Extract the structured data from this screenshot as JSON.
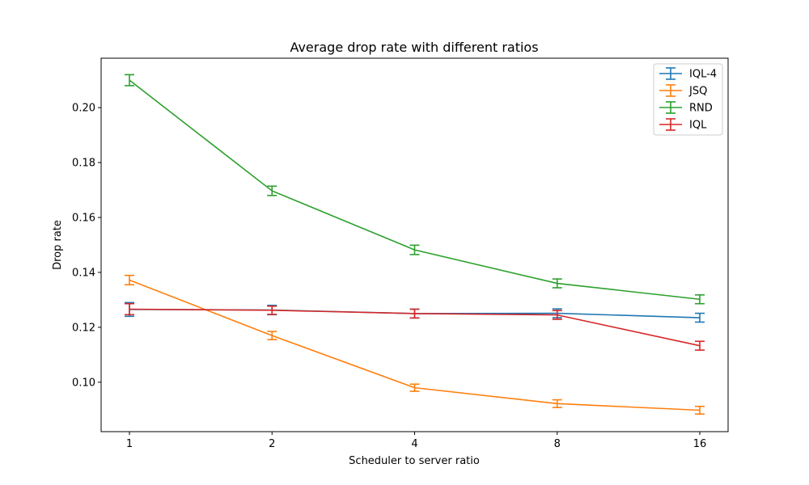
{
  "chart_data": {
    "type": "line",
    "title": "Average drop rate with different ratios",
    "xlabel": "Scheduler to server ratio",
    "ylabel": "Drop rate",
    "categories": [
      "1",
      "2",
      "4",
      "8",
      "16"
    ],
    "ylim": [
      0.082,
      0.218
    ],
    "yticks": [
      0.1,
      0.12,
      0.14,
      0.16,
      0.18,
      0.2
    ],
    "ytick_labels": [
      "0.10",
      "0.12",
      "0.14",
      "0.16",
      "0.18",
      "0.20"
    ],
    "grid": false,
    "legend_position": "top-right",
    "series": [
      {
        "name": "IQL-4",
        "color": "#1f77b4",
        "values": [
          0.1265,
          0.1263,
          0.125,
          0.1251,
          0.1235
        ],
        "errors": [
          0.0025,
          0.0017,
          0.0016,
          0.0016,
          0.0016
        ]
      },
      {
        "name": "JSQ",
        "color": "#ff7f0e",
        "values": [
          0.1372,
          0.117,
          0.098,
          0.0922,
          0.0898
        ],
        "errors": [
          0.0017,
          0.0015,
          0.0013,
          0.0014,
          0.0014
        ]
      },
      {
        "name": "RND",
        "color": "#2ca02c",
        "values": [
          0.21,
          0.1697,
          0.1482,
          0.136,
          0.1302
        ],
        "errors": [
          0.002,
          0.0017,
          0.0017,
          0.0016,
          0.0016
        ]
      },
      {
        "name": "IQL",
        "color": "#d62728",
        "values": [
          0.1266,
          0.1262,
          0.125,
          0.1245,
          0.1133
        ],
        "errors": [
          0.002,
          0.0015,
          0.0016,
          0.0016,
          0.0016
        ]
      }
    ]
  }
}
